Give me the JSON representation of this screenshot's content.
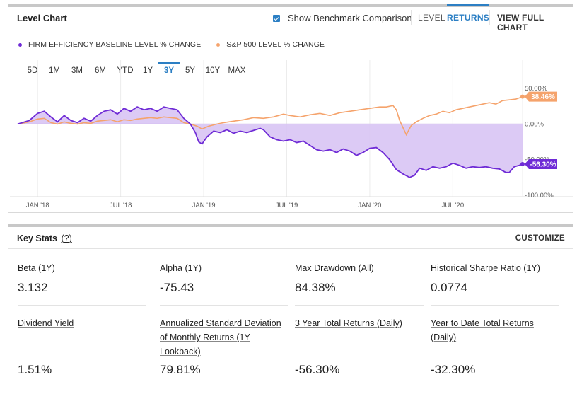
{
  "chart_panel": {
    "title": "Level Chart",
    "benchmark_label": "Show Benchmark Comparison",
    "benchmark_checked": true,
    "mode_tabs": [
      {
        "label": "LEVEL",
        "active": false
      },
      {
        "label": "RETURNS",
        "active": true
      }
    ],
    "view_full_chart": "VIEW FULL CHART",
    "legend": [
      {
        "label": "FIRM EFFICIENCY BASELINE LEVEL % CHANGE",
        "color": "#6f2bd6"
      },
      {
        "label": "S&P 500 LEVEL % CHANGE",
        "color": "#f5a36c"
      }
    ],
    "ranges": [
      {
        "label": "5D",
        "active": false
      },
      {
        "label": "1M",
        "active": false
      },
      {
        "label": "3M",
        "active": false
      },
      {
        "label": "6M",
        "active": false
      },
      {
        "label": "YTD",
        "active": false
      },
      {
        "label": "1Y",
        "active": false
      },
      {
        "label": "3Y",
        "active": true
      },
      {
        "label": "5Y",
        "active": false
      },
      {
        "label": "10Y",
        "active": false
      },
      {
        "label": "MAX",
        "active": false
      }
    ]
  },
  "chart_data": {
    "type": "line",
    "title": "",
    "x_ticks": [
      "JAN '18",
      "JUL '18",
      "JAN '19",
      "JUL '19",
      "JAN '20",
      "JUL '20"
    ],
    "y_ticks": [
      "50.00%",
      "0.00%",
      "-50.00%",
      "-100.00%"
    ],
    "y_tick_values": [
      50,
      0,
      -50,
      -100
    ],
    "ylim": [
      -100,
      58
    ],
    "x_start": 2017.88,
    "x_end": 2020.92,
    "grid": true,
    "legend_position": "top-left",
    "series": [
      {
        "name": "FIRM EFFICIENCY BASELINE LEVEL % CHANGE",
        "color": "#6f2bd6",
        "fill": "#d8c4f4",
        "end_label": "-56.30%",
        "points": [
          [
            2017.88,
            0
          ],
          [
            2017.95,
            5
          ],
          [
            2018.0,
            15
          ],
          [
            2018.04,
            18
          ],
          [
            2018.08,
            10
          ],
          [
            2018.12,
            3
          ],
          [
            2018.16,
            12
          ],
          [
            2018.2,
            5
          ],
          [
            2018.24,
            2
          ],
          [
            2018.28,
            8
          ],
          [
            2018.32,
            4
          ],
          [
            2018.36,
            12
          ],
          [
            2018.4,
            18
          ],
          [
            2018.44,
            20
          ],
          [
            2018.48,
            14
          ],
          [
            2018.52,
            22
          ],
          [
            2018.56,
            18
          ],
          [
            2018.6,
            24
          ],
          [
            2018.64,
            20
          ],
          [
            2018.68,
            22
          ],
          [
            2018.72,
            18
          ],
          [
            2018.76,
            24
          ],
          [
            2018.8,
            22
          ],
          [
            2018.84,
            20
          ],
          [
            2018.88,
            8
          ],
          [
            2018.92,
            0
          ],
          [
            2018.95,
            -12
          ],
          [
            2018.97,
            -25
          ],
          [
            2018.99,
            -28
          ],
          [
            2019.02,
            -18
          ],
          [
            2019.06,
            -10
          ],
          [
            2019.1,
            -12
          ],
          [
            2019.14,
            -8
          ],
          [
            2019.18,
            -13
          ],
          [
            2019.22,
            -10
          ],
          [
            2019.26,
            -12
          ],
          [
            2019.3,
            -9
          ],
          [
            2019.34,
            -6
          ],
          [
            2019.36,
            -8
          ],
          [
            2019.4,
            -18
          ],
          [
            2019.44,
            -22
          ],
          [
            2019.48,
            -24
          ],
          [
            2019.52,
            -22
          ],
          [
            2019.56,
            -26
          ],
          [
            2019.6,
            -24
          ],
          [
            2019.64,
            -30
          ],
          [
            2019.68,
            -36
          ],
          [
            2019.72,
            -38
          ],
          [
            2019.76,
            -36
          ],
          [
            2019.8,
            -40
          ],
          [
            2019.84,
            -35
          ],
          [
            2019.88,
            -38
          ],
          [
            2019.92,
            -44
          ],
          [
            2019.96,
            -40
          ],
          [
            2020.0,
            -34
          ],
          [
            2020.04,
            -33
          ],
          [
            2020.08,
            -40
          ],
          [
            2020.12,
            -50
          ],
          [
            2020.16,
            -64
          ],
          [
            2020.2,
            -70
          ],
          [
            2020.24,
            -75
          ],
          [
            2020.27,
            -72
          ],
          [
            2020.3,
            -62
          ],
          [
            2020.34,
            -65
          ],
          [
            2020.38,
            -60
          ],
          [
            2020.42,
            -62
          ],
          [
            2020.46,
            -60
          ],
          [
            2020.5,
            -55
          ],
          [
            2020.54,
            -58
          ],
          [
            2020.58,
            -62
          ],
          [
            2020.62,
            -60
          ],
          [
            2020.66,
            -61
          ],
          [
            2020.7,
            -60
          ],
          [
            2020.74,
            -62
          ],
          [
            2020.78,
            -63
          ],
          [
            2020.82,
            -68
          ],
          [
            2020.84,
            -68
          ],
          [
            2020.87,
            -60
          ],
          [
            2020.9,
            -58
          ],
          [
            2020.92,
            -56.3
          ]
        ]
      },
      {
        "name": "S&P 500 LEVEL % CHANGE",
        "color": "#f5a36c",
        "fill": "none",
        "end_label": "38.46%",
        "points": [
          [
            2017.88,
            0
          ],
          [
            2017.95,
            3
          ],
          [
            2018.0,
            7
          ],
          [
            2018.04,
            8
          ],
          [
            2018.08,
            2
          ],
          [
            2018.12,
            0
          ],
          [
            2018.16,
            3
          ],
          [
            2018.2,
            1
          ],
          [
            2018.24,
            0
          ],
          [
            2018.28,
            2
          ],
          [
            2018.32,
            1
          ],
          [
            2018.36,
            4
          ],
          [
            2018.4,
            5
          ],
          [
            2018.44,
            6
          ],
          [
            2018.48,
            3
          ],
          [
            2018.52,
            6
          ],
          [
            2018.56,
            5
          ],
          [
            2018.6,
            7
          ],
          [
            2018.64,
            8
          ],
          [
            2018.68,
            9
          ],
          [
            2018.72,
            8
          ],
          [
            2018.76,
            10
          ],
          [
            2018.8,
            9
          ],
          [
            2018.84,
            8
          ],
          [
            2018.88,
            2
          ],
          [
            2018.92,
            0
          ],
          [
            2018.96,
            -3
          ],
          [
            2018.99,
            -7
          ],
          [
            2019.03,
            -3
          ],
          [
            2019.08,
            0
          ],
          [
            2019.12,
            2
          ],
          [
            2019.18,
            4
          ],
          [
            2019.24,
            6
          ],
          [
            2019.3,
            9
          ],
          [
            2019.36,
            8
          ],
          [
            2019.42,
            10
          ],
          [
            2019.48,
            14
          ],
          [
            2019.52,
            12
          ],
          [
            2019.58,
            10
          ],
          [
            2019.64,
            13
          ],
          [
            2019.7,
            15
          ],
          [
            2019.76,
            12
          ],
          [
            2019.82,
            16
          ],
          [
            2019.88,
            18
          ],
          [
            2019.94,
            20
          ],
          [
            2020.0,
            22
          ],
          [
            2020.06,
            24
          ],
          [
            2020.1,
            24
          ],
          [
            2020.14,
            26
          ],
          [
            2020.16,
            20
          ],
          [
            2020.18,
            5
          ],
          [
            2020.2,
            -5
          ],
          [
            2020.22,
            -15
          ],
          [
            2020.25,
            -2
          ],
          [
            2020.28,
            3
          ],
          [
            2020.32,
            8
          ],
          [
            2020.36,
            12
          ],
          [
            2020.4,
            14
          ],
          [
            2020.44,
            18
          ],
          [
            2020.48,
            16
          ],
          [
            2020.52,
            20
          ],
          [
            2020.56,
            22
          ],
          [
            2020.6,
            24
          ],
          [
            2020.64,
            26
          ],
          [
            2020.68,
            28
          ],
          [
            2020.72,
            30
          ],
          [
            2020.76,
            28
          ],
          [
            2020.8,
            33
          ],
          [
            2020.84,
            34
          ],
          [
            2020.88,
            35
          ],
          [
            2020.92,
            38.46
          ]
        ]
      }
    ]
  },
  "key_stats": {
    "title": "Key Stats",
    "help": "(?)",
    "customize": "CUSTOMIZE",
    "items": [
      {
        "label": "Beta (1Y)",
        "value": "3.132"
      },
      {
        "label": "Alpha (1Y)",
        "value": "-75.43"
      },
      {
        "label": "Max Drawdown (All)",
        "value": "84.38%"
      },
      {
        "label": "Historical Sharpe Ratio (1Y)",
        "value": "0.0774"
      },
      {
        "label": "Dividend Yield",
        "value": "1.51%"
      },
      {
        "label": "Annualized Standard Deviation of Monthly Returns (1Y Lookback)",
        "value": "79.81%"
      },
      {
        "label": "3 Year Total Returns (Daily)",
        "value": "-56.30%"
      },
      {
        "label": "Year to Date Total Returns (Daily)",
        "value": "-32.30%"
      }
    ]
  }
}
